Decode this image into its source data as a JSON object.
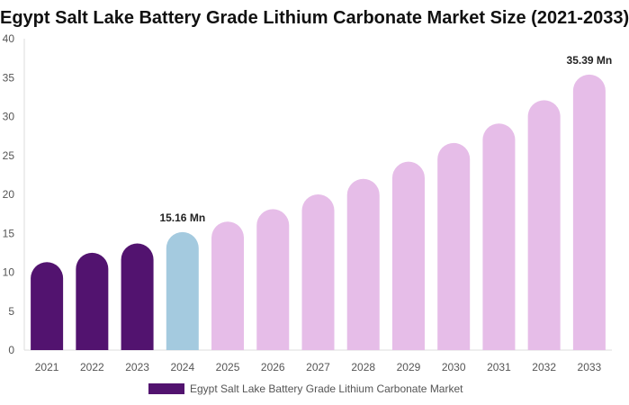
{
  "chart_data": {
    "type": "bar",
    "title": "Egypt Salt Lake Battery Grade Lithium Carbonate Market Size (2021-2033)",
    "categories": [
      "2021",
      "2022",
      "2023",
      "2024",
      "2025",
      "2026",
      "2027",
      "2028",
      "2029",
      "2030",
      "2031",
      "2032",
      "2033"
    ],
    "series": [
      {
        "name": "Egypt Salt Lake Battery Grade Lithium Carbonate Market",
        "values": [
          11.3,
          12.5,
          13.7,
          15.16,
          16.5,
          18.1,
          20.0,
          22.0,
          24.2,
          26.6,
          29.1,
          32.1,
          35.39
        ]
      }
    ],
    "bar_colors": [
      "#52136f",
      "#52136f",
      "#52136f",
      "#a4cadf",
      "#e6bde8",
      "#e6bde8",
      "#e6bde8",
      "#e6bde8",
      "#e6bde8",
      "#e6bde8",
      "#e6bde8",
      "#e6bde8",
      "#e6bde8"
    ],
    "data_labels": [
      {
        "category": "2024",
        "text": "15.16 Mn"
      },
      {
        "category": "2033",
        "text": "35.39 Mn"
      }
    ],
    "ylim": [
      0,
      40
    ],
    "yticks": [
      0,
      5,
      10,
      15,
      20,
      25,
      30,
      35,
      40
    ],
    "grid": false,
    "legend_position": "bottom",
    "legend_color": "#52136f"
  }
}
